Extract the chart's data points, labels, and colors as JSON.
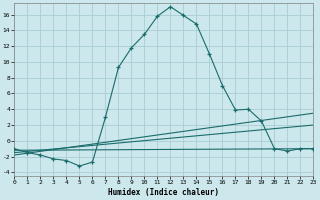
{
  "xlabel": "Humidex (Indice chaleur)",
  "bg_color": "#cce8ec",
  "grid_color": "#a8cdd4",
  "line_color": "#1a6b6b",
  "xlim": [
    0,
    23
  ],
  "ylim": [
    -4.5,
    17.5
  ],
  "xticks": [
    0,
    1,
    2,
    3,
    4,
    5,
    6,
    7,
    8,
    9,
    10,
    11,
    12,
    13,
    14,
    15,
    16,
    17,
    18,
    19,
    20,
    21,
    22,
    23
  ],
  "yticks": [
    -4,
    -2,
    0,
    2,
    4,
    6,
    8,
    10,
    12,
    14,
    16
  ],
  "main_x": [
    0,
    1,
    2,
    3,
    4,
    5,
    6,
    7,
    8,
    9,
    10,
    11,
    12,
    13,
    14,
    15,
    16,
    17,
    18,
    19,
    20,
    21,
    22,
    23
  ],
  "main_y": [
    -1,
    -1.5,
    -1.8,
    -2.3,
    -2.5,
    -3.2,
    -2.7,
    3.0,
    9.3,
    11.8,
    13.5,
    15.8,
    17.0,
    15.9,
    14.8,
    11.0,
    7.0,
    3.9,
    4.0,
    2.5,
    -1.0,
    -1.3,
    -1.0,
    -1.0
  ],
  "ref_lines": [
    {
      "x": [
        0,
        23
      ],
      "y": [
        -1.2,
        -1.0
      ]
    },
    {
      "x": [
        0,
        23
      ],
      "y": [
        -1.5,
        2.0
      ]
    },
    {
      "x": [
        0,
        23
      ],
      "y": [
        -1.8,
        3.5
      ]
    }
  ]
}
